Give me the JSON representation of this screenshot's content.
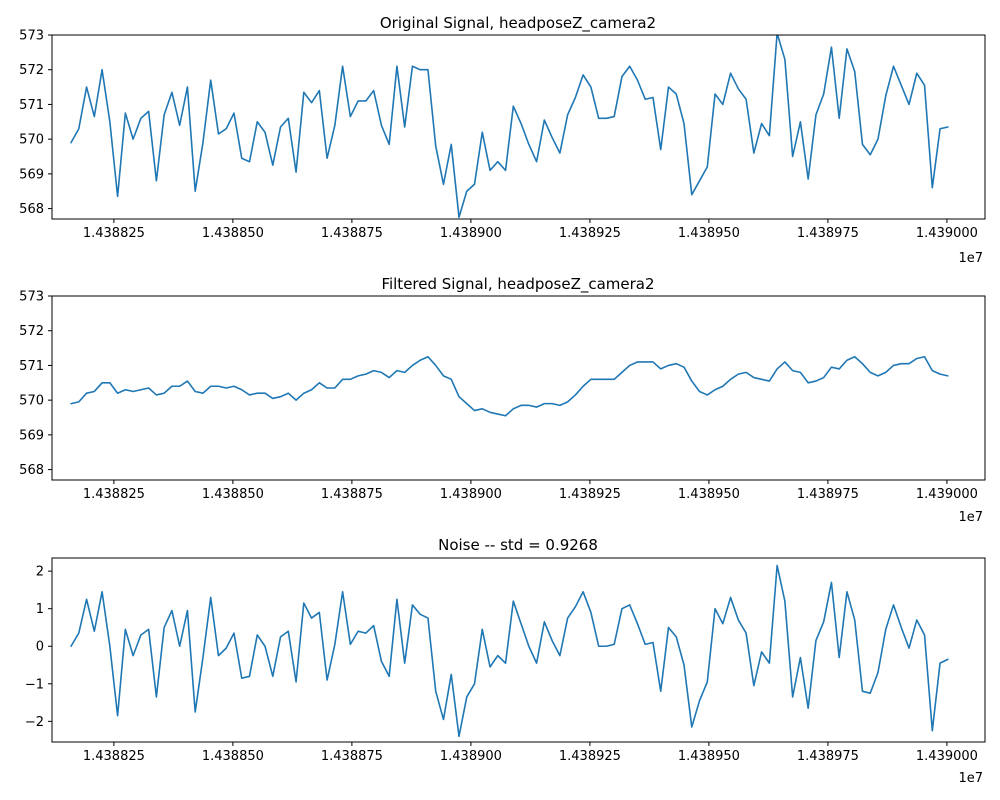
{
  "style": {
    "line_color": "#1f77b4"
  },
  "chart_data": [
    {
      "type": "line",
      "title": "Original Signal, headposeZ_camera2",
      "xlim": [
        14388120,
        14390080
      ],
      "ylim": [
        567.7,
        573.0
      ],
      "xticks": [
        14388250,
        14388500,
        14388750,
        14389000,
        14389250,
        14389500,
        14389750,
        14390000
      ],
      "xtick_labels": [
        "1.438825",
        "1.438850",
        "1.438875",
        "1.438900",
        "1.438925",
        "1.438950",
        "1.438975",
        "1.439000"
      ],
      "yticks": [
        568,
        569,
        570,
        571,
        572,
        573
      ],
      "ytick_labels": [
        "568",
        "569",
        "570",
        "571",
        "572",
        "573"
      ],
      "offset_label": "1e7",
      "series": [
        {
          "x0": 14388160,
          "dx": 16.3,
          "values": [
            569.9,
            570.3,
            571.5,
            570.65,
            572.0,
            570.5,
            568.35,
            570.75,
            570.0,
            570.6,
            570.8,
            568.8,
            570.7,
            571.35,
            570.4,
            571.5,
            568.5,
            569.9,
            571.7,
            570.15,
            570.3,
            570.75,
            569.45,
            569.35,
            570.5,
            570.2,
            569.25,
            570.35,
            570.6,
            569.05,
            571.35,
            571.05,
            571.4,
            569.45,
            570.4,
            572.1,
            570.65,
            571.1,
            571.1,
            571.4,
            570.4,
            569.85,
            572.1,
            570.35,
            572.1,
            572.0,
            572.0,
            569.8,
            568.7,
            569.85,
            567.75,
            568.5,
            568.7,
            570.2,
            569.1,
            569.35,
            569.1,
            570.95,
            570.45,
            569.85,
            569.35,
            570.55,
            570.05,
            569.6,
            570.7,
            571.2,
            571.85,
            571.5,
            570.6,
            570.6,
            570.65,
            571.8,
            572.1,
            571.7,
            571.15,
            571.2,
            569.7,
            571.5,
            571.3,
            570.45,
            568.4,
            568.8,
            569.2,
            571.3,
            571.0,
            571.9,
            571.45,
            571.15,
            569.6,
            570.45,
            570.1,
            573.05,
            572.3,
            569.5,
            570.5,
            568.85,
            570.7,
            571.3,
            572.65,
            570.6,
            572.6,
            571.95,
            569.85,
            569.55,
            570.0,
            571.25,
            572.1,
            571.55,
            571.0,
            571.9,
            571.55,
            568.6,
            570.3,
            570.35
          ]
        }
      ]
    },
    {
      "type": "line",
      "title": "Filtered Signal, headposeZ_camera2",
      "xlim": [
        14388120,
        14390080
      ],
      "ylim": [
        567.7,
        573.0
      ],
      "xticks": [
        14388250,
        14388500,
        14388750,
        14389000,
        14389250,
        14389500,
        14389750,
        14390000
      ],
      "xtick_labels": [
        "1.438825",
        "1.438850",
        "1.438875",
        "1.438900",
        "1.438925",
        "1.438950",
        "1.438975",
        "1.439000"
      ],
      "yticks": [
        568,
        569,
        570,
        571,
        572,
        573
      ],
      "ytick_labels": [
        "568",
        "569",
        "570",
        "571",
        "572",
        "573"
      ],
      "offset_label": "1e7",
      "series": [
        {
          "x0": 14388160,
          "dx": 16.3,
          "values": [
            569.9,
            569.95,
            570.2,
            570.25,
            570.5,
            570.5,
            570.2,
            570.3,
            570.25,
            570.3,
            570.35,
            570.15,
            570.2,
            570.4,
            570.4,
            570.55,
            570.25,
            570.2,
            570.4,
            570.4,
            570.35,
            570.4,
            570.3,
            570.15,
            570.2,
            570.2,
            570.05,
            570.1,
            570.2,
            570.0,
            570.2,
            570.3,
            570.5,
            570.35,
            570.35,
            570.6,
            570.6,
            570.7,
            570.75,
            570.85,
            570.8,
            570.65,
            570.85,
            570.8,
            571.0,
            571.15,
            571.25,
            571.0,
            570.7,
            570.6,
            570.1,
            569.9,
            569.7,
            569.75,
            569.65,
            569.6,
            569.55,
            569.75,
            569.85,
            569.85,
            569.8,
            569.9,
            569.9,
            569.85,
            569.95,
            570.15,
            570.4,
            570.6,
            570.6,
            570.6,
            570.6,
            570.8,
            571.0,
            571.1,
            571.1,
            571.1,
            570.9,
            571.0,
            571.05,
            570.95,
            570.55,
            570.25,
            570.15,
            570.3,
            570.4,
            570.6,
            570.75,
            570.8,
            570.65,
            570.6,
            570.55,
            570.9,
            571.1,
            570.85,
            570.8,
            570.5,
            570.55,
            570.65,
            570.95,
            570.9,
            571.15,
            571.25,
            571.05,
            570.8,
            570.7,
            570.8,
            571.0,
            571.05,
            571.05,
            571.2,
            571.25,
            570.85,
            570.75,
            570.7
          ]
        }
      ]
    },
    {
      "type": "line",
      "title": "Noise -- std = 0.9268",
      "xlim": [
        14388120,
        14390080
      ],
      "ylim": [
        -2.55,
        2.35
      ],
      "xticks": [
        14388250,
        14388500,
        14388750,
        14389000,
        14389250,
        14389500,
        14389750,
        14390000
      ],
      "xtick_labels": [
        "1.438825",
        "1.438850",
        "1.438875",
        "1.438900",
        "1.438925",
        "1.438950",
        "1.438975",
        "1.439000"
      ],
      "yticks": [
        -2,
        -1,
        0,
        1,
        2
      ],
      "ytick_labels": [
        "−2",
        "−1",
        "0",
        "1",
        "2"
      ],
      "offset_label": "1e7",
      "series": [
        {
          "x0": 14388160,
          "dx": 16.3,
          "values": [
            0.0,
            0.35,
            1.25,
            0.4,
            1.45,
            0.0,
            -1.85,
            0.45,
            -0.25,
            0.3,
            0.45,
            -1.35,
            0.5,
            0.95,
            0.0,
            0.95,
            -1.75,
            -0.3,
            1.3,
            -0.25,
            -0.05,
            0.35,
            -0.85,
            -0.8,
            0.3,
            0.0,
            -0.8,
            0.25,
            0.4,
            -0.95,
            1.15,
            0.75,
            0.9,
            -0.9,
            0.05,
            1.45,
            0.05,
            0.4,
            0.35,
            0.55,
            -0.4,
            -0.8,
            1.25,
            -0.45,
            1.1,
            0.85,
            0.75,
            -1.2,
            -1.95,
            -0.75,
            -2.4,
            -1.35,
            -1.0,
            0.45,
            -0.55,
            -0.25,
            -0.45,
            1.2,
            0.6,
            0.0,
            -0.45,
            0.65,
            0.15,
            -0.25,
            0.75,
            1.05,
            1.45,
            0.9,
            0.0,
            0.0,
            0.05,
            1.0,
            1.1,
            0.6,
            0.05,
            0.1,
            -1.2,
            0.5,
            0.25,
            -0.5,
            -2.15,
            -1.45,
            -0.95,
            1.0,
            0.6,
            1.3,
            0.7,
            0.35,
            -1.05,
            -0.15,
            -0.45,
            2.15,
            1.2,
            -1.35,
            -0.3,
            -1.65,
            0.15,
            0.65,
            1.7,
            -0.3,
            1.45,
            0.7,
            -1.2,
            -1.25,
            -0.7,
            0.45,
            1.1,
            0.5,
            -0.05,
            0.7,
            0.3,
            -2.25,
            -0.45,
            -0.35
          ]
        }
      ]
    }
  ]
}
